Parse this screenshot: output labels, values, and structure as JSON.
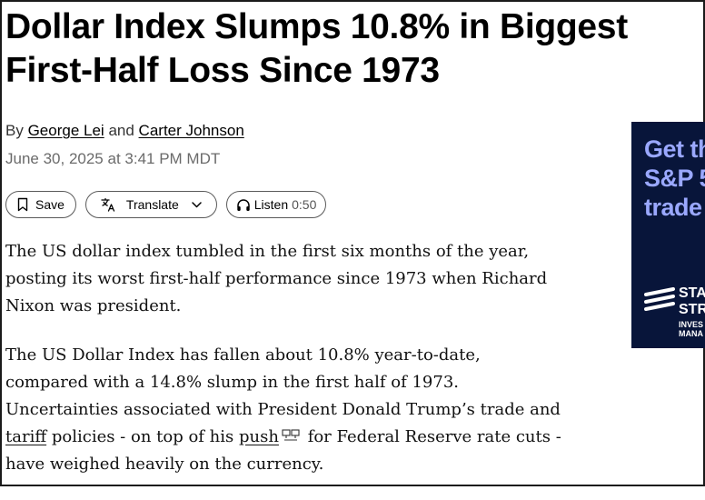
{
  "article": {
    "headline": "Dollar Index Slumps 10.8% in Biggest First-Half Loss Since 1973",
    "byline_prefix": "By",
    "author1": "George Lei",
    "byline_and": "and",
    "author2": "Carter Johnson",
    "date": "June 30, 2025 at 3:41 PM MDT",
    "paragraph1": "The US dollar index tumbled in the first six months of the year, posting its worst first-half performance since 1973 when Richard Nixon was president.",
    "p2_part1": "The US Dollar Index has fallen about 10.8% year-to-date, compared with a 14.8% slump in the first half of 1973. Uncertainties associated with President Donald Trump’s trade and",
    "p2_link1": "tariff",
    "p2_part2": "policies - on top of his",
    "p2_link2": "push",
    "p2_part3": "for Federal Reserve rate cuts - have weighed heavily on the currency."
  },
  "actions": {
    "save_label": "Save",
    "translate_label": "Translate",
    "listen_label": "Listen",
    "listen_duration": "0:50"
  },
  "ad": {
    "headline": "Get th\nS&P 5\ntrade",
    "brand": "STA\nSTR",
    "subtext": "INVES\nMANA",
    "accent_color": "#9aa8ff",
    "background_color": "#08153a"
  },
  "icons": {
    "save": "bookmark-icon",
    "translate": "translate-icon",
    "translate_chevron": "chevron-down-icon",
    "listen": "headphones-icon",
    "push_link": "terminal-link-icon"
  }
}
